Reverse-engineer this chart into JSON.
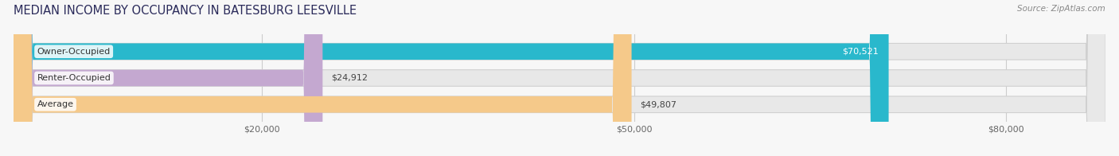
{
  "title": "MEDIAN INCOME BY OCCUPANCY IN BATESBURG LEESVILLE",
  "source": "Source: ZipAtlas.com",
  "categories": [
    "Owner-Occupied",
    "Renter-Occupied",
    "Average"
  ],
  "values": [
    70521,
    24912,
    49807
  ],
  "labels": [
    "$70,521",
    "$24,912",
    "$49,807"
  ],
  "bar_colors": [
    "#29b8cc",
    "#c4a8d0",
    "#f5c98a"
  ],
  "bar_track_color": "#e8e8e8",
  "track_edge_color": "#d0d0d0",
  "xlim_max": 88000,
  "xticks": [
    20000,
    50000,
    80000
  ],
  "xticklabels": [
    "$20,000",
    "$50,000",
    "$80,000"
  ],
  "bar_height": 0.62,
  "background_color": "#f7f7f7",
  "title_fontsize": 10.5,
  "label_fontsize": 8.0,
  "tick_fontsize": 8.0,
  "source_fontsize": 7.5,
  "label_inside_color": [
    "#ffffff",
    "#444444",
    "#444444"
  ],
  "label_inside": [
    true,
    false,
    false
  ]
}
